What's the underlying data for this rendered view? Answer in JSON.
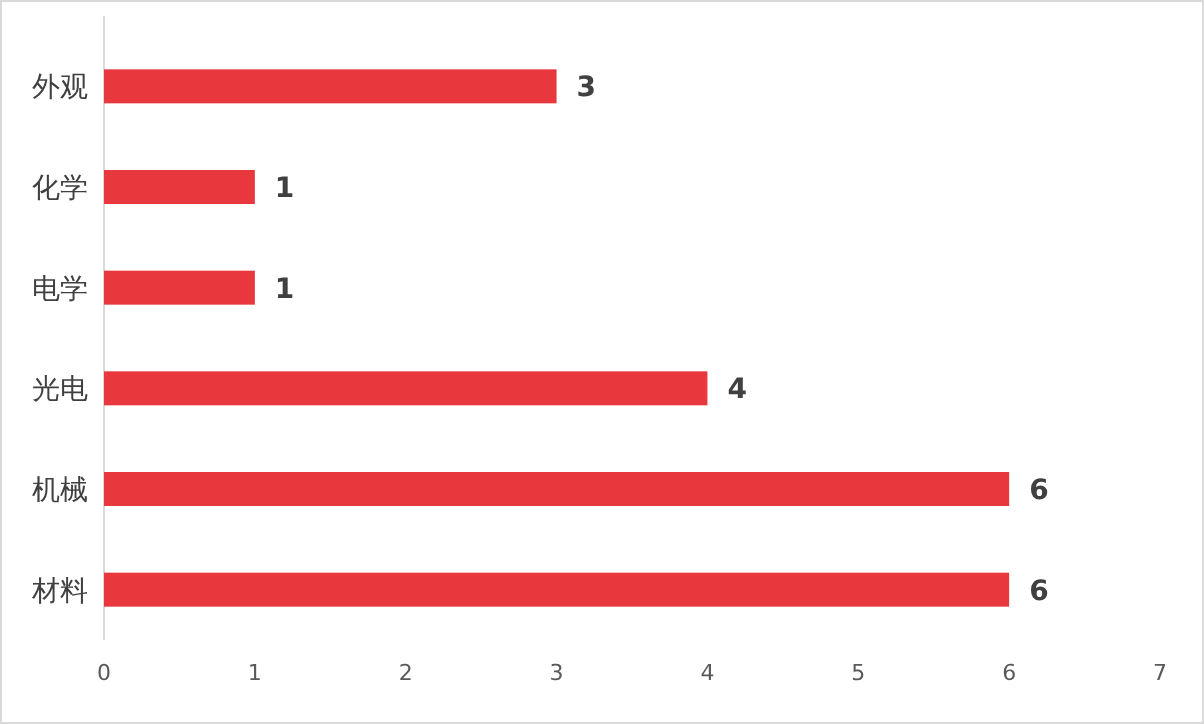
{
  "chart_data": {
    "type": "bar",
    "orientation": "horizontal",
    "categories": [
      "外观",
      "化学",
      "电学",
      "光电",
      "机械",
      "材料"
    ],
    "values": [
      3,
      1,
      1,
      4,
      6,
      6
    ],
    "color": "#e8383d",
    "xlim": [
      0,
      7
    ],
    "xticks": [
      0,
      1,
      2,
      3,
      4,
      5,
      6,
      7
    ],
    "data_labels": true
  }
}
